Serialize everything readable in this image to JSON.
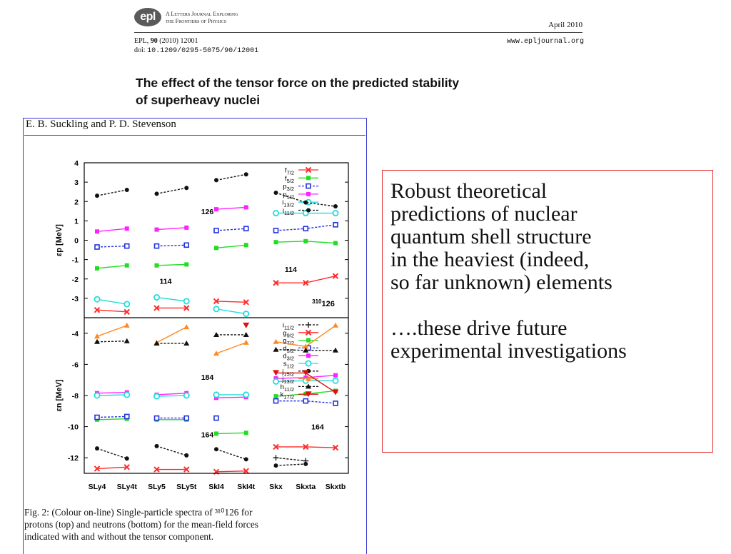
{
  "journal": {
    "logo": "epl",
    "tagline_line1": "A Letters Journal Exploring",
    "tagline_line2": "the Frontiers of Physics",
    "date": "April 2010",
    "citation_prefix": "EPL, ",
    "citation_volume": "90",
    "citation_suffix": " (2010) 12001",
    "doi_prefix": "doi: ",
    "doi": "10.1209/0295-5075/90/12001",
    "url": "www.epljournal.org"
  },
  "paper": {
    "title_line1": "The effect of the tensor force on the predicted stability",
    "title_line2": "of superheavy nuclei",
    "authors": "E. B. Suckling and P. D. Stevenson",
    "caption_lines": [
      "Fig. 2: (Colour on-line) Single-particle spectra of ³¹⁰126 for",
      "protons (top) and neutrons (bottom) for the mean-field forces",
      "indicated with and without the tensor component."
    ]
  },
  "callout": {
    "lines": [
      "Robust theoretical",
      "predictions of nuclear",
      "quantum shell structure",
      "in the heaviest (indeed,",
      "so far unknown) elements",
      "",
      "….these drive future",
      "experimental investigations"
    ],
    "border_color": "#e03030"
  },
  "chart_data": [
    {
      "type": "line",
      "ylabel": "εp [MeV]",
      "ylim": [
        -4,
        4
      ],
      "annotation": "310126",
      "shell_labels": [
        {
          "text": "126",
          "x": 3.7,
          "y": 1.5
        },
        {
          "text": "114",
          "x": 2.3,
          "y": -2.1
        },
        {
          "text": "114",
          "x": 6.5,
          "y": -1.5
        }
      ],
      "categories": [
        "SLy4",
        "SLy4t",
        "SLy5",
        "SLy5t",
        "SkI4",
        "SkI4t",
        "Skx",
        "Skxta",
        "Skxtb"
      ],
      "series": [
        {
          "name": "f7/2",
          "color": "#ff2a2a",
          "marker": "x",
          "dash": false,
          "values": [
            -3.6,
            -3.7,
            -3.5,
            -3.5,
            -3.15,
            -3.2,
            -2.2,
            -2.2,
            -1.85
          ]
        },
        {
          "name": "f5/2",
          "color": "#22dd22",
          "marker": "s",
          "dash": false,
          "values": [
            -1.45,
            -1.3,
            -1.3,
            -1.25,
            -0.4,
            -0.25,
            -0.1,
            -0.05,
            -0.15
          ]
        },
        {
          "name": "p3/2",
          "color": "#2233dd",
          "marker": "so",
          "dash": true,
          "values": [
            -0.35,
            -0.3,
            -0.3,
            -0.25,
            0.5,
            0.6,
            0.5,
            0.6,
            0.8
          ]
        },
        {
          "name": "p1/2",
          "color": "#ff22ff",
          "marker": "s",
          "dash": false,
          "values": [
            0.45,
            0.6,
            0.55,
            0.65,
            1.6,
            1.7,
            null,
            null,
            null
          ]
        },
        {
          "name": "i13/2",
          "color": "#22dddd",
          "marker": "o",
          "dash": false,
          "values": [
            -3.05,
            -3.3,
            -2.95,
            -3.15,
            -3.55,
            -3.8,
            1.4,
            1.4,
            1.4
          ]
        },
        {
          "name": "i11/2",
          "color": "#111111",
          "marker": "d",
          "dash": true,
          "values": [
            2.3,
            2.6,
            2.4,
            2.7,
            3.1,
            3.4,
            2.45,
            1.95,
            1.75
          ]
        }
      ]
    },
    {
      "type": "line",
      "ylabel": "εn [MeV]",
      "ylim": [
        -13,
        -3
      ],
      "shell_labels": [
        {
          "text": "184",
          "x": 3.7,
          "y": -6.8
        },
        {
          "text": "164",
          "x": 3.7,
          "y": -10.5
        },
        {
          "text": "164",
          "x": 7.4,
          "y": -10.0
        }
      ],
      "categories": [
        "SLy4",
        "SLy4t",
        "SLy5",
        "SLy5t",
        "SkI4",
        "SkI4t",
        "Skx",
        "Skxta",
        "Skxtb"
      ],
      "series": [
        {
          "name": "i11/2",
          "color": "#111111",
          "marker": "+",
          "dash": true,
          "values": [
            null,
            null,
            null,
            null,
            null,
            null,
            -12.0,
            -12.2,
            null
          ]
        },
        {
          "name": "g9/2",
          "color": "#ff2a2a",
          "marker": "x",
          "dash": false,
          "values": [
            -12.7,
            -12.6,
            -12.75,
            -12.75,
            -12.9,
            -12.85,
            -11.3,
            -11.3,
            -11.35
          ]
        },
        {
          "name": "g7/2",
          "color": "#22dd22",
          "marker": "s",
          "dash": false,
          "values": [
            -9.55,
            -9.5,
            -9.55,
            -9.55,
            -10.45,
            -10.4,
            -8.05,
            -7.9,
            -7.7
          ]
        },
        {
          "name": "d5/2",
          "color": "#2233dd",
          "marker": "so",
          "dash": true,
          "values": [
            -9.4,
            -9.35,
            -9.45,
            -9.45,
            -9.45,
            null,
            -8.35,
            -8.35,
            -8.5
          ]
        },
        {
          "name": "d3/2",
          "color": "#ff22ff",
          "marker": "s",
          "dash": false,
          "values": [
            -7.85,
            -7.8,
            -7.95,
            -7.85,
            -8.15,
            -8.1,
            -6.9,
            -6.85,
            -6.7
          ]
        },
        {
          "name": "s1/2",
          "color": "#22dddd",
          "marker": "o",
          "dash": false,
          "values": [
            -8.0,
            -7.95,
            -8.05,
            -8.0,
            -7.95,
            -7.95,
            -7.1,
            -7.05,
            -7.05
          ]
        },
        {
          "name": "j15/2",
          "color": "#111111",
          "marker": "d",
          "dash": true,
          "values": [
            -11.4,
            -12.05,
            -11.25,
            -11.85,
            -11.45,
            -12.1,
            -12.5,
            -12.4,
            null
          ]
        },
        {
          "name": "j13/2",
          "color": "#ff8822",
          "marker": "t",
          "dash": false,
          "values": [
            -4.2,
            -3.5,
            -4.6,
            -3.6,
            -5.3,
            -4.6,
            -4.55,
            -4.85,
            -3.5
          ]
        },
        {
          "name": "h11/2",
          "color": "#111111",
          "marker": "tk",
          "dash": true,
          "values": [
            -4.55,
            -4.5,
            -4.65,
            -4.65,
            -4.1,
            -4.1,
            -5.05,
            -5.1,
            -5.1
          ]
        },
        {
          "name": "k17/2",
          "color": "#dd1111",
          "marker": "tv",
          "dash": false,
          "values": [
            null,
            null,
            null,
            null,
            null,
            -3.5,
            -6.55,
            -6.55,
            -7.8
          ]
        }
      ]
    }
  ]
}
